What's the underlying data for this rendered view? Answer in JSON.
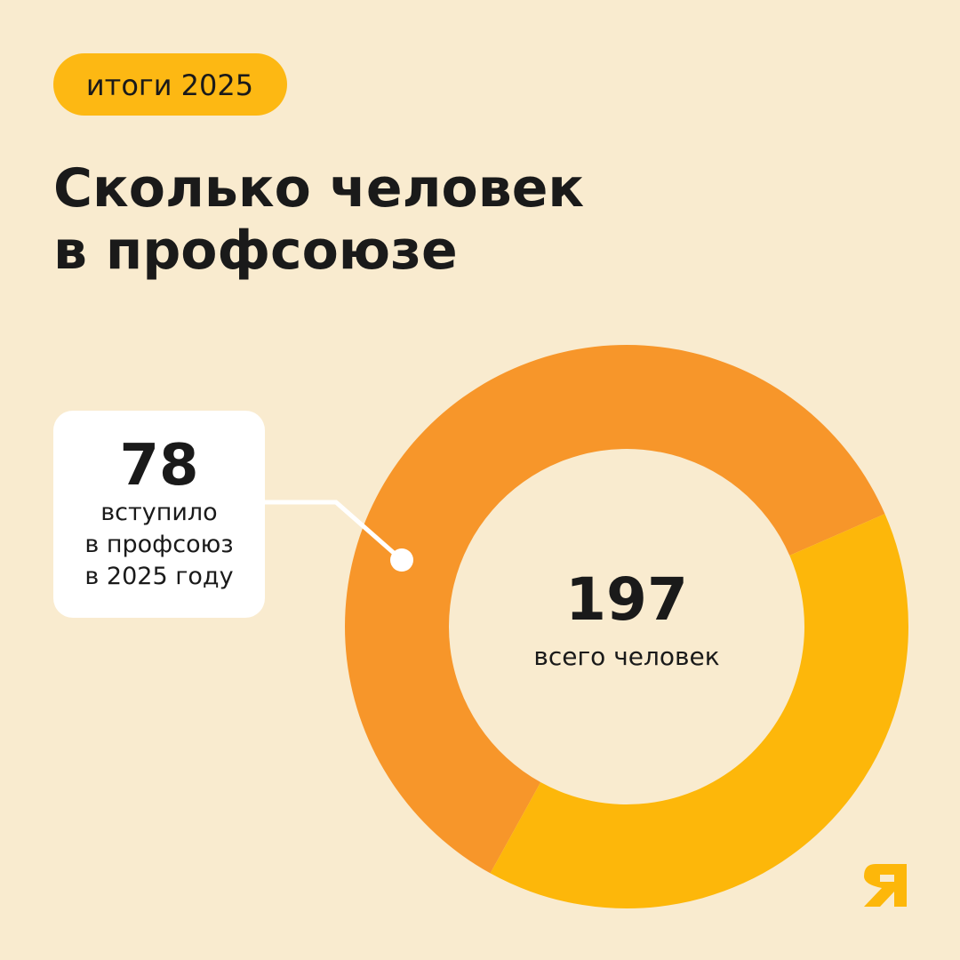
{
  "chart_data": {
    "type": "donut",
    "tag": "итоги 2025",
    "title_lines": [
      "Сколько человек",
      "в профсоюзе"
    ],
    "values": [
      119,
      78
    ],
    "colors": [
      "#F7962A",
      "#FDB70A"
    ],
    "center_value": 197,
    "center_label": "всего человек",
    "callout": {
      "value": 78,
      "lines": [
        "вступило",
        "в профсоюз",
        "в 2025 году"
      ]
    }
  }
}
